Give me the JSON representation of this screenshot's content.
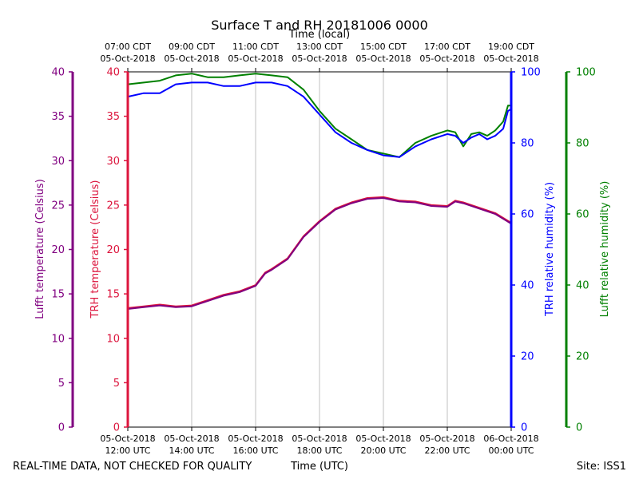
{
  "chart_data": {
    "type": "line",
    "title": "Surface T and RH 20181006 0000",
    "top_axis": {
      "label": "Time (local)",
      "ticks": [
        {
          "hour": 0,
          "line1": "07:00 CDT",
          "line2": "05-Oct-2018"
        },
        {
          "hour": 2,
          "line1": "09:00 CDT",
          "line2": "05-Oct-2018"
        },
        {
          "hour": 4,
          "line1": "11:00 CDT",
          "line2": "05-Oct-2018"
        },
        {
          "hour": 6,
          "line1": "13:00 CDT",
          "line2": "05-Oct-2018"
        },
        {
          "hour": 8,
          "line1": "15:00 CDT",
          "line2": "05-Oct-2018"
        },
        {
          "hour": 10,
          "line1": "17:00 CDT",
          "line2": "05-Oct-2018"
        },
        {
          "hour": 12,
          "line1": "19:00 CDT",
          "line2": "05-Oct-2018"
        }
      ]
    },
    "bottom_axis": {
      "label": "Time (UTC)",
      "xlim": [
        0,
        12
      ],
      "ticks": [
        {
          "hour": 0,
          "line1": "05-Oct-2018",
          "line2": "12:00 UTC"
        },
        {
          "hour": 2,
          "line1": "05-Oct-2018",
          "line2": "14:00 UTC"
        },
        {
          "hour": 4,
          "line1": "05-Oct-2018",
          "line2": "16:00 UTC"
        },
        {
          "hour": 6,
          "line1": "05-Oct-2018",
          "line2": "18:00 UTC"
        },
        {
          "hour": 8,
          "line1": "05-Oct-2018",
          "line2": "20:00 UTC"
        },
        {
          "hour": 10,
          "line1": "05-Oct-2018",
          "line2": "22:00 UTC"
        },
        {
          "hour": 12,
          "line1": "06-Oct-2018",
          "line2": "00:00 UTC"
        }
      ]
    },
    "axes": {
      "lufft_temp": {
        "label": "Lufft temperature (Celsius)",
        "color": "#800080",
        "ylim": [
          0,
          40
        ],
        "ticks": [
          0,
          5,
          10,
          15,
          20,
          25,
          30,
          35,
          40
        ]
      },
      "trh_temp": {
        "label": "TRH temperature (Celsius)",
        "color": "#dc143c",
        "ylim": [
          0,
          40
        ],
        "ticks": [
          0,
          5,
          10,
          15,
          20,
          25,
          30,
          35,
          40
        ]
      },
      "trh_rh": {
        "label": "TRH relative humidity (%)",
        "color": "#0000ff",
        "ylim": [
          0,
          100
        ],
        "ticks": [
          0,
          20,
          40,
          60,
          80,
          100
        ]
      },
      "lufft_rh": {
        "label": "Lufft relative humidity (%)",
        "color": "#008000",
        "ylim": [
          0,
          100
        ],
        "ticks": [
          0,
          20,
          40,
          60,
          80,
          100
        ]
      }
    },
    "series": [
      {
        "name": "Lufft relative humidity (%)",
        "axis": "lufft_rh",
        "color": "#008000",
        "x": [
          0,
          0.5,
          1,
          1.5,
          2,
          2.5,
          3,
          3.5,
          4,
          4.5,
          5,
          5.5,
          6,
          6.5,
          7,
          7.5,
          8,
          8.5,
          9,
          9.5,
          10,
          10.25,
          10.5,
          10.75,
          11,
          11.25,
          11.5,
          11.75,
          11.9,
          12
        ],
        "values": [
          96.5,
          97,
          97.5,
          99,
          99.5,
          98.5,
          98.5,
          99,
          99.5,
          99,
          98.5,
          95,
          89,
          84,
          81,
          78,
          77,
          76,
          80,
          82,
          83.5,
          83,
          79,
          82.5,
          83,
          82,
          83.5,
          86,
          90.5,
          90.5
        ]
      },
      {
        "name": "TRH relative humidity (%)",
        "axis": "trh_rh",
        "color": "#0000ff",
        "x": [
          0,
          0.5,
          1,
          1.5,
          2,
          2.5,
          3,
          3.5,
          4,
          4.5,
          5,
          5.5,
          6,
          6.5,
          7,
          7.5,
          8,
          8.5,
          9,
          9.5,
          10,
          10.25,
          10.5,
          10.75,
          11,
          11.25,
          11.5,
          11.75,
          11.9,
          12
        ],
        "values": [
          93,
          94,
          94,
          96.5,
          97,
          97,
          96,
          96,
          97,
          97,
          96,
          93,
          88,
          83,
          80,
          78,
          76.5,
          76,
          79,
          81,
          82.5,
          82,
          80,
          81.5,
          82.5,
          81,
          82,
          84,
          89,
          89.5
        ]
      },
      {
        "name": "TRH temperature (Celsius)",
        "axis": "trh_temp",
        "color": "#dc143c",
        "x": [
          0,
          0.5,
          1,
          1.5,
          2,
          2.5,
          3,
          3.5,
          4,
          4.3,
          4.5,
          5,
          5.5,
          6,
          6.5,
          7,
          7.5,
          8,
          8.5,
          9,
          9.5,
          10,
          10.25,
          10.5,
          11,
          11.5,
          12
        ],
        "values": [
          13.4,
          13.6,
          13.8,
          13.6,
          13.7,
          14.3,
          14.9,
          15.3,
          16.0,
          17.4,
          17.8,
          19.0,
          21.5,
          23.2,
          24.6,
          25.3,
          25.8,
          25.9,
          25.5,
          25.4,
          25.0,
          24.9,
          25.5,
          25.3,
          24.7,
          24.1,
          23.0
        ]
      },
      {
        "name": "Lufft temperature (Celsius)",
        "axis": "lufft_temp",
        "color": "#800080",
        "x": [
          0,
          0.5,
          1,
          1.5,
          2,
          2.5,
          3,
          3.5,
          4,
          4.3,
          4.5,
          5,
          5.5,
          6,
          6.5,
          7,
          7.5,
          8,
          8.5,
          9,
          9.5,
          10,
          10.25,
          10.5,
          11,
          11.5,
          12
        ],
        "values": [
          13.3,
          13.5,
          13.7,
          13.5,
          13.6,
          14.2,
          14.8,
          15.2,
          15.9,
          17.3,
          17.7,
          18.9,
          21.4,
          23.1,
          24.5,
          25.2,
          25.7,
          25.8,
          25.4,
          25.3,
          24.9,
          24.8,
          25.4,
          25.2,
          24.6,
          24.0,
          22.9
        ]
      }
    ],
    "grid": "vertical",
    "footer_left": "REAL-TIME DATA, NOT CHECKED FOR QUALITY",
    "footer_right": "Site: ISS1"
  }
}
